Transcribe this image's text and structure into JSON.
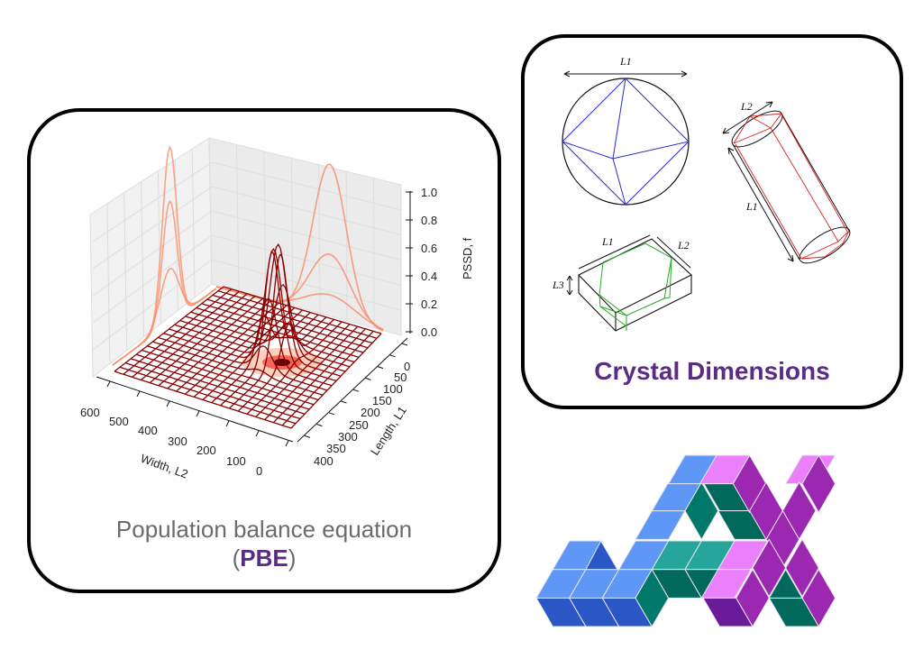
{
  "pbe": {
    "title": "Population balance equation",
    "paren_open": "(",
    "acronym": "PBE",
    "paren_close": ")",
    "plot": {
      "type": "3d-surface",
      "z_label": "PSSD, f",
      "x_label": "Width, L2",
      "y_label": "Length, L1",
      "z_ticks": [
        "0.0",
        "0.2",
        "0.4",
        "0.6",
        "0.8",
        "1.0"
      ],
      "x_ticks": [
        "600",
        "500",
        "400",
        "300",
        "200",
        "100",
        "0"
      ],
      "y_ticks": [
        "0",
        "50",
        "100",
        "150",
        "200",
        "250",
        "300",
        "350",
        "400"
      ],
      "surface_color": "#8b0000",
      "projection_color": "#fc8d6b"
    }
  },
  "crystal": {
    "title": "Crystal Dimensions",
    "octahedron_label": "L1",
    "cylinder_labels": [
      "L2",
      "L1"
    ],
    "box_labels": [
      "L1",
      "L2",
      "L3"
    ],
    "colors": {
      "octahedron": "#2b2bd0",
      "cylinder": "#e02020",
      "box": "#22aa22"
    }
  },
  "logo": {
    "text": "JAX",
    "colors": {
      "light_blue": "#5e97f6",
      "dark_blue": "#2a56c6",
      "pink": "#ea80fc",
      "purple": "#9c27b0",
      "dark_purple": "#6a1b9a",
      "teal": "#00796b",
      "dark_green": "#00695c",
      "light_teal": "#26a69a"
    }
  }
}
